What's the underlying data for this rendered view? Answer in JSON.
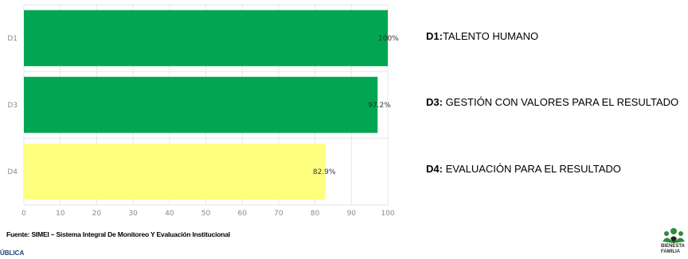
{
  "chart_data": {
    "type": "bar",
    "orientation": "horizontal",
    "categories": [
      "D1",
      "D3",
      "D4"
    ],
    "values": [
      100,
      97.2,
      82.9
    ],
    "data_labels": [
      "100%",
      "97.2%",
      "82.9%"
    ],
    "colors": [
      "#00a651",
      "#00a651",
      "#ffff7f"
    ],
    "xlim": [
      0,
      100
    ],
    "xticks": [
      "0",
      "10",
      "20",
      "30",
      "40",
      "50",
      "60",
      "70",
      "80",
      "90",
      "100"
    ],
    "grid": true
  },
  "legend": [
    {
      "code": "D1:",
      "text": "TALENTO HUMANO"
    },
    {
      "code": "D3:",
      "text": " GESTIÓN CON VALORES PARA EL RESULTADO"
    },
    {
      "code": "D4:",
      "text": " EVALUACIÓN PARA EL RESULTADO"
    }
  ],
  "source": "Fuente: SIMEI – Sistema Integral De Monitoreo Y Evaluación Institucional",
  "footer_left": "ÚBLICA",
  "logo": {
    "line1": "BIENESTA",
    "line2": "FAMILIA",
    "icon": "family-hearts-logo-icon"
  }
}
